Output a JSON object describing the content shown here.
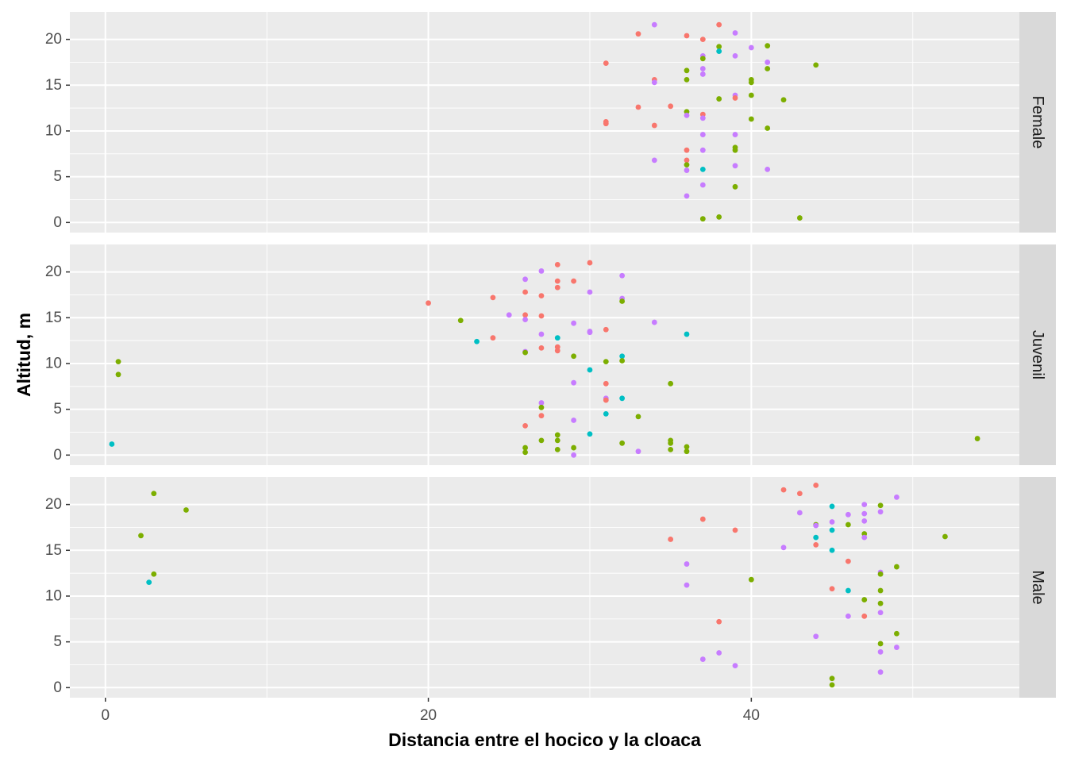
{
  "chart_data": {
    "type": "scatter",
    "facets": [
      "Female",
      "Juvenil",
      "Male"
    ],
    "xlabel": "Distancia entre el hocico y la cloaca",
    "ylabel": "Altitud, m",
    "xlim": [
      -2.2,
      56.6
    ],
    "ylim": [
      -1.1,
      23.0
    ],
    "x_ticks": [
      0,
      20,
      40
    ],
    "y_ticks": [
      0,
      5,
      10,
      15,
      20
    ],
    "grid": true,
    "legend": "none",
    "series_colors": {
      "red": "#F8766D",
      "green": "#7CAE00",
      "teal": "#00BFC4",
      "purple": "#C77CFF"
    },
    "panels": [
      {
        "facet": "Female",
        "points": [
          {
            "x": 34,
            "y": 21.6,
            "c": "purple"
          },
          {
            "x": 38,
            "y": 21.6,
            "c": "red"
          },
          {
            "x": 33,
            "y": 20.6,
            "c": "red"
          },
          {
            "x": 36,
            "y": 20.4,
            "c": "red"
          },
          {
            "x": 39,
            "y": 20.7,
            "c": "purple"
          },
          {
            "x": 37,
            "y": 20.0,
            "c": "red"
          },
          {
            "x": 38,
            "y": 19.2,
            "c": "green"
          },
          {
            "x": 40,
            "y": 19.1,
            "c": "purple"
          },
          {
            "x": 41,
            "y": 19.3,
            "c": "green"
          },
          {
            "x": 38,
            "y": 18.7,
            "c": "teal"
          },
          {
            "x": 37,
            "y": 18.2,
            "c": "purple"
          },
          {
            "x": 39,
            "y": 18.2,
            "c": "purple"
          },
          {
            "x": 37,
            "y": 17.9,
            "c": "green"
          },
          {
            "x": 31,
            "y": 17.4,
            "c": "red"
          },
          {
            "x": 41,
            "y": 17.5,
            "c": "purple"
          },
          {
            "x": 44,
            "y": 17.2,
            "c": "green"
          },
          {
            "x": 41,
            "y": 16.8,
            "c": "green"
          },
          {
            "x": 36,
            "y": 16.6,
            "c": "green"
          },
          {
            "x": 37,
            "y": 16.8,
            "c": "purple"
          },
          {
            "x": 37,
            "y": 16.2,
            "c": "purple"
          },
          {
            "x": 34,
            "y": 15.6,
            "c": "red"
          },
          {
            "x": 34,
            "y": 15.3,
            "c": "purple"
          },
          {
            "x": 36,
            "y": 15.6,
            "c": "green"
          },
          {
            "x": 40,
            "y": 15.6,
            "c": "green"
          },
          {
            "x": 40,
            "y": 15.3,
            "c": "green"
          },
          {
            "x": 40,
            "y": 13.9,
            "c": "green"
          },
          {
            "x": 39,
            "y": 13.9,
            "c": "purple"
          },
          {
            "x": 39,
            "y": 13.6,
            "c": "red"
          },
          {
            "x": 38,
            "y": 13.5,
            "c": "green"
          },
          {
            "x": 42,
            "y": 13.4,
            "c": "green"
          },
          {
            "x": 33,
            "y": 12.6,
            "c": "red"
          },
          {
            "x": 35,
            "y": 12.7,
            "c": "red"
          },
          {
            "x": 36,
            "y": 12.1,
            "c": "green"
          },
          {
            "x": 36,
            "y": 11.7,
            "c": "purple"
          },
          {
            "x": 37,
            "y": 11.8,
            "c": "red"
          },
          {
            "x": 37,
            "y": 11.4,
            "c": "purple"
          },
          {
            "x": 40,
            "y": 11.3,
            "c": "green"
          },
          {
            "x": 31,
            "y": 11.0,
            "c": "red"
          },
          {
            "x": 31,
            "y": 10.8,
            "c": "red"
          },
          {
            "x": 34,
            "y": 10.6,
            "c": "red"
          },
          {
            "x": 41,
            "y": 10.3,
            "c": "green"
          },
          {
            "x": 37,
            "y": 9.6,
            "c": "purple"
          },
          {
            "x": 39,
            "y": 9.6,
            "c": "purple"
          },
          {
            "x": 39,
            "y": 8.2,
            "c": "green"
          },
          {
            "x": 39,
            "y": 7.9,
            "c": "green"
          },
          {
            "x": 36,
            "y": 7.9,
            "c": "red"
          },
          {
            "x": 37,
            "y": 7.9,
            "c": "purple"
          },
          {
            "x": 34,
            "y": 6.8,
            "c": "purple"
          },
          {
            "x": 36,
            "y": 6.8,
            "c": "red"
          },
          {
            "x": 36,
            "y": 6.3,
            "c": "green"
          },
          {
            "x": 39,
            "y": 6.2,
            "c": "purple"
          },
          {
            "x": 36,
            "y": 5.7,
            "c": "purple"
          },
          {
            "x": 37,
            "y": 5.8,
            "c": "teal"
          },
          {
            "x": 41,
            "y": 5.8,
            "c": "purple"
          },
          {
            "x": 37,
            "y": 4.1,
            "c": "purple"
          },
          {
            "x": 39,
            "y": 3.9,
            "c": "green"
          },
          {
            "x": 36,
            "y": 2.9,
            "c": "purple"
          },
          {
            "x": 37,
            "y": 0.4,
            "c": "green"
          },
          {
            "x": 38,
            "y": 0.6,
            "c": "green"
          },
          {
            "x": 43,
            "y": 0.5,
            "c": "green"
          }
        ]
      },
      {
        "facet": "Juvenil",
        "points": [
          {
            "x": 30,
            "y": 21.0,
            "c": "red"
          },
          {
            "x": 28,
            "y": 20.8,
            "c": "red"
          },
          {
            "x": 27,
            "y": 20.1,
            "c": "purple"
          },
          {
            "x": 32,
            "y": 19.6,
            "c": "purple"
          },
          {
            "x": 26,
            "y": 19.2,
            "c": "purple"
          },
          {
            "x": 28,
            "y": 19.0,
            "c": "red"
          },
          {
            "x": 29,
            "y": 19.0,
            "c": "red"
          },
          {
            "x": 28,
            "y": 18.3,
            "c": "red"
          },
          {
            "x": 26,
            "y": 17.8,
            "c": "red"
          },
          {
            "x": 30,
            "y": 17.8,
            "c": "purple"
          },
          {
            "x": 27,
            "y": 17.4,
            "c": "red"
          },
          {
            "x": 24,
            "y": 17.2,
            "c": "red"
          },
          {
            "x": 32,
            "y": 17.1,
            "c": "purple"
          },
          {
            "x": 32,
            "y": 16.8,
            "c": "green"
          },
          {
            "x": 20,
            "y": 16.6,
            "c": "red"
          },
          {
            "x": 25,
            "y": 15.3,
            "c": "purple"
          },
          {
            "x": 26,
            "y": 15.3,
            "c": "red"
          },
          {
            "x": 27,
            "y": 15.2,
            "c": "red"
          },
          {
            "x": 26,
            "y": 14.8,
            "c": "purple"
          },
          {
            "x": 22,
            "y": 14.7,
            "c": "green"
          },
          {
            "x": 34,
            "y": 14.5,
            "c": "purple"
          },
          {
            "x": 29,
            "y": 14.4,
            "c": "purple"
          },
          {
            "x": 31,
            "y": 13.7,
            "c": "red"
          },
          {
            "x": 30,
            "y": 13.5,
            "c": "purple"
          },
          {
            "x": 30,
            "y": 13.4,
            "c": "purple"
          },
          {
            "x": 27,
            "y": 13.2,
            "c": "purple"
          },
          {
            "x": 36,
            "y": 13.2,
            "c": "teal"
          },
          {
            "x": 24,
            "y": 12.8,
            "c": "red"
          },
          {
            "x": 28,
            "y": 12.8,
            "c": "teal"
          },
          {
            "x": 23,
            "y": 12.4,
            "c": "teal"
          },
          {
            "x": 27,
            "y": 11.7,
            "c": "red"
          },
          {
            "x": 28,
            "y": 11.8,
            "c": "red"
          },
          {
            "x": 28,
            "y": 11.4,
            "c": "red"
          },
          {
            "x": 26,
            "y": 11.3,
            "c": "purple"
          },
          {
            "x": 26,
            "y": 11.2,
            "c": "green"
          },
          {
            "x": 29,
            "y": 10.8,
            "c": "green"
          },
          {
            "x": 32,
            "y": 10.8,
            "c": "teal"
          },
          {
            "x": 32,
            "y": 10.3,
            "c": "green"
          },
          {
            "x": 31,
            "y": 10.2,
            "c": "green"
          },
          {
            "x": 0.8,
            "y": 10.2,
            "c": "green"
          },
          {
            "x": 30,
            "y": 9.3,
            "c": "teal"
          },
          {
            "x": 0.8,
            "y": 8.8,
            "c": "green"
          },
          {
            "x": 29,
            "y": 7.9,
            "c": "purple"
          },
          {
            "x": 31,
            "y": 7.8,
            "c": "red"
          },
          {
            "x": 35,
            "y": 7.8,
            "c": "green"
          },
          {
            "x": 31,
            "y": 6.2,
            "c": "purple"
          },
          {
            "x": 32,
            "y": 6.2,
            "c": "teal"
          },
          {
            "x": 31,
            "y": 6.0,
            "c": "red"
          },
          {
            "x": 27,
            "y": 5.7,
            "c": "purple"
          },
          {
            "x": 27,
            "y": 5.2,
            "c": "green"
          },
          {
            "x": 31,
            "y": 4.5,
            "c": "teal"
          },
          {
            "x": 27,
            "y": 4.3,
            "c": "red"
          },
          {
            "x": 33,
            "y": 4.2,
            "c": "green"
          },
          {
            "x": 29,
            "y": 3.8,
            "c": "purple"
          },
          {
            "x": 26,
            "y": 3.2,
            "c": "red"
          },
          {
            "x": 30,
            "y": 2.3,
            "c": "teal"
          },
          {
            "x": 28,
            "y": 2.2,
            "c": "green"
          },
          {
            "x": 27,
            "y": 1.6,
            "c": "green"
          },
          {
            "x": 28,
            "y": 1.6,
            "c": "green"
          },
          {
            "x": 35,
            "y": 1.6,
            "c": "green"
          },
          {
            "x": 35,
            "y": 1.3,
            "c": "green"
          },
          {
            "x": 32,
            "y": 1.3,
            "c": "green"
          },
          {
            "x": 54,
            "y": 1.8,
            "c": "green"
          },
          {
            "x": 0.4,
            "y": 1.2,
            "c": "teal"
          },
          {
            "x": 26,
            "y": 0.8,
            "c": "green"
          },
          {
            "x": 29,
            "y": 0.8,
            "c": "green"
          },
          {
            "x": 36,
            "y": 0.9,
            "c": "green"
          },
          {
            "x": 28,
            "y": 0.6,
            "c": "green"
          },
          {
            "x": 35,
            "y": 0.6,
            "c": "green"
          },
          {
            "x": 26,
            "y": 0.3,
            "c": "green"
          },
          {
            "x": 33,
            "y": 0.4,
            "c": "purple"
          },
          {
            "x": 36,
            "y": 0.4,
            "c": "green"
          },
          {
            "x": 29,
            "y": 0.0,
            "c": "purple"
          }
        ]
      },
      {
        "facet": "Male",
        "points": [
          {
            "x": 3,
            "y": 21.2,
            "c": "green"
          },
          {
            "x": 5,
            "y": 19.4,
            "c": "green"
          },
          {
            "x": 2.2,
            "y": 16.6,
            "c": "green"
          },
          {
            "x": 3,
            "y": 12.4,
            "c": "green"
          },
          {
            "x": 2.7,
            "y": 11.5,
            "c": "teal"
          },
          {
            "x": 44,
            "y": 22.1,
            "c": "red"
          },
          {
            "x": 42,
            "y": 21.6,
            "c": "red"
          },
          {
            "x": 43,
            "y": 21.2,
            "c": "red"
          },
          {
            "x": 49,
            "y": 20.8,
            "c": "purple"
          },
          {
            "x": 45,
            "y": 19.8,
            "c": "teal"
          },
          {
            "x": 47,
            "y": 20.0,
            "c": "purple"
          },
          {
            "x": 48,
            "y": 19.9,
            "c": "green"
          },
          {
            "x": 43,
            "y": 19.1,
            "c": "purple"
          },
          {
            "x": 46,
            "y": 18.9,
            "c": "purple"
          },
          {
            "x": 47,
            "y": 19.0,
            "c": "purple"
          },
          {
            "x": 48,
            "y": 19.2,
            "c": "purple"
          },
          {
            "x": 37,
            "y": 18.4,
            "c": "red"
          },
          {
            "x": 45,
            "y": 18.1,
            "c": "purple"
          },
          {
            "x": 47,
            "y": 18.2,
            "c": "purple"
          },
          {
            "x": 44,
            "y": 17.8,
            "c": "green"
          },
          {
            "x": 44,
            "y": 17.7,
            "c": "purple"
          },
          {
            "x": 46,
            "y": 17.8,
            "c": "green"
          },
          {
            "x": 39,
            "y": 17.2,
            "c": "red"
          },
          {
            "x": 45,
            "y": 17.2,
            "c": "teal"
          },
          {
            "x": 47,
            "y": 16.8,
            "c": "green"
          },
          {
            "x": 44,
            "y": 16.4,
            "c": "teal"
          },
          {
            "x": 47,
            "y": 16.4,
            "c": "purple"
          },
          {
            "x": 52,
            "y": 16.5,
            "c": "green"
          },
          {
            "x": 35,
            "y": 16.2,
            "c": "red"
          },
          {
            "x": 44,
            "y": 15.6,
            "c": "red"
          },
          {
            "x": 42,
            "y": 15.3,
            "c": "purple"
          },
          {
            "x": 45,
            "y": 15.0,
            "c": "teal"
          },
          {
            "x": 46,
            "y": 13.8,
            "c": "red"
          },
          {
            "x": 36,
            "y": 13.5,
            "c": "purple"
          },
          {
            "x": 49,
            "y": 13.2,
            "c": "green"
          },
          {
            "x": 48,
            "y": 12.6,
            "c": "purple"
          },
          {
            "x": 48,
            "y": 12.4,
            "c": "green"
          },
          {
            "x": 40,
            "y": 11.8,
            "c": "green"
          },
          {
            "x": 36,
            "y": 11.2,
            "c": "purple"
          },
          {
            "x": 45,
            "y": 10.8,
            "c": "red"
          },
          {
            "x": 46,
            "y": 10.6,
            "c": "teal"
          },
          {
            "x": 48,
            "y": 10.6,
            "c": "green"
          },
          {
            "x": 47,
            "y": 9.6,
            "c": "green"
          },
          {
            "x": 48,
            "y": 9.2,
            "c": "green"
          },
          {
            "x": 48,
            "y": 8.2,
            "c": "purple"
          },
          {
            "x": 46,
            "y": 7.8,
            "c": "purple"
          },
          {
            "x": 47,
            "y": 7.8,
            "c": "red"
          },
          {
            "x": 38,
            "y": 7.2,
            "c": "red"
          },
          {
            "x": 49,
            "y": 5.9,
            "c": "green"
          },
          {
            "x": 44,
            "y": 5.6,
            "c": "purple"
          },
          {
            "x": 48,
            "y": 4.8,
            "c": "green"
          },
          {
            "x": 49,
            "y": 4.4,
            "c": "purple"
          },
          {
            "x": 48,
            "y": 3.9,
            "c": "purple"
          },
          {
            "x": 38,
            "y": 3.8,
            "c": "purple"
          },
          {
            "x": 37,
            "y": 3.1,
            "c": "purple"
          },
          {
            "x": 39,
            "y": 2.4,
            "c": "purple"
          },
          {
            "x": 48,
            "y": 1.7,
            "c": "purple"
          },
          {
            "x": 45,
            "y": 1.0,
            "c": "green"
          },
          {
            "x": 45,
            "y": 0.3,
            "c": "green"
          }
        ]
      }
    ]
  }
}
